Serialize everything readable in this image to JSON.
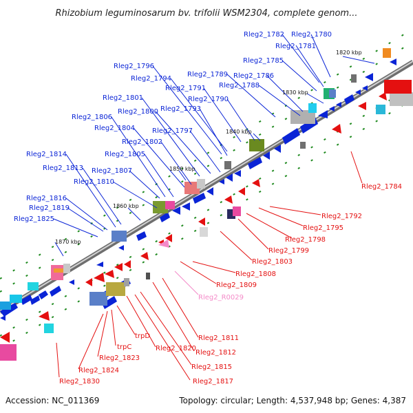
{
  "title": "Rhizobium leguminosarum bv. trifolii WSM2304, complete genom...",
  "footer": {
    "accession": "Accession: NC_011369",
    "summary": "Topology: circular; Length: 4,537,948 bp; Genes: 4,387"
  },
  "colors": {
    "forward_gene": "#0a24d6",
    "reverse_gene": "#e41010",
    "rna_gene": "#f48ac8",
    "backbone": "#8c8c8c",
    "tick": "#1f8a1f"
  },
  "scale_labels": [
    "1820 kbp",
    "1830 kbp",
    "1840 kbp",
    "1850 kbp",
    "1860 kbp",
    "1870 kbp"
  ],
  "upper_labels": [
    "Rleg2_1782",
    "Rleg2_1780",
    "Rleg2_1781",
    "Rleg2_1785",
    "Rleg2_1796",
    "Rleg2_1789",
    "Rleg2_1786",
    "Rleg2_1794",
    "Rleg2_1788",
    "Rleg2_1791",
    "Rleg2_1790",
    "Rleg2_1801",
    "Rleg2_1793",
    "Rleg2_1800",
    "Rleg2_1806",
    "Rleg2_1797",
    "Rleg2_1804",
    "Rleg2_1802",
    "Rleg2_1805",
    "Rleg2_1814",
    "Rleg2_1813",
    "Rleg2_1807",
    "Rleg2_1810",
    "Rleg2_1816",
    "Rleg2_1819",
    "Rleg2_1825"
  ],
  "lower_labels": [
    "Rleg2_1784",
    "Rleg2_1792",
    "Rleg2_1795",
    "Rleg2_1798",
    "Rleg2_1799",
    "Rleg2_1803",
    "Rleg2_1808",
    "Rleg2_1809",
    "Rleg2_R0029",
    "Rleg2_1811",
    "Rleg2_1812",
    "Rleg2_1815",
    "Rleg2_1817",
    "Rleg2_1820",
    "trpD",
    "trpC",
    "Rleg2_1823",
    "Rleg2_1824",
    "Rleg2_1830"
  ]
}
